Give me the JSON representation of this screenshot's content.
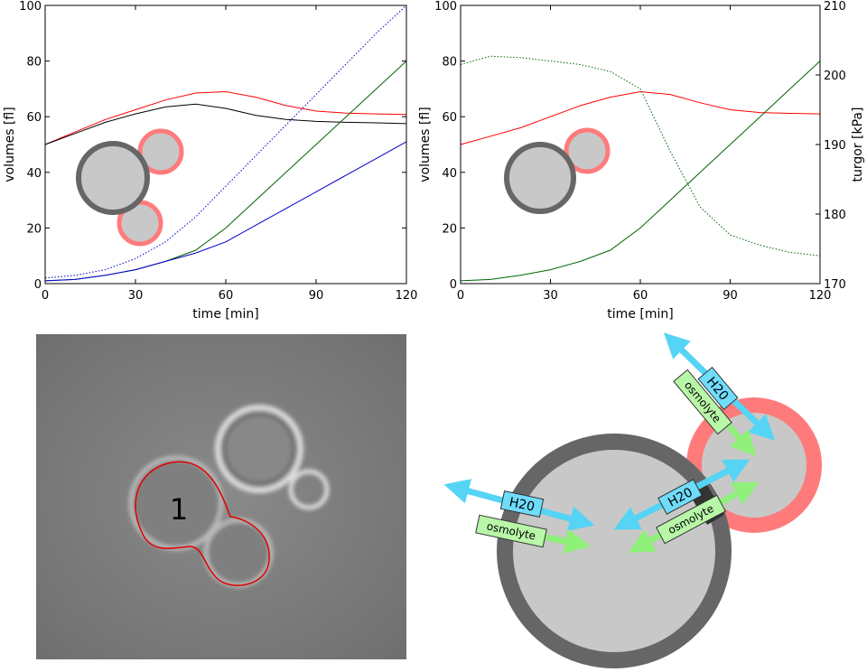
{
  "chart_data": [
    {
      "type": "line",
      "xlabel": "time [min]",
      "ylabel": "volumes [fl]",
      "x": [
        0,
        10,
        20,
        30,
        40,
        50,
        60,
        70,
        80,
        90,
        100,
        110,
        120
      ],
      "xlim": [
        0,
        120
      ],
      "xticks": [
        0,
        30,
        60,
        90,
        120
      ],
      "ylim": [
        0,
        100
      ],
      "yticks": [
        0,
        20,
        40,
        60,
        80,
        100
      ],
      "series": [
        {
          "color": "#ff0000",
          "style": "solid",
          "values": [
            50,
            54.5,
            59,
            62.5,
            66,
            68.5,
            69,
            67,
            64,
            62,
            61.3,
            61,
            60.8
          ]
        },
        {
          "color": "#000000",
          "style": "solid",
          "values": [
            50,
            54,
            58,
            61,
            63.5,
            64.5,
            63,
            60.5,
            59,
            58.3,
            58,
            57.8,
            57.5
          ]
        },
        {
          "color": "#0000cc",
          "style": "dotted",
          "values": [
            2,
            3,
            5,
            9,
            15,
            24,
            35,
            46,
            57,
            68,
            79,
            90,
            100
          ]
        },
        {
          "color": "#006400",
          "style": "solid",
          "values": [
            1,
            1.5,
            3,
            5,
            8,
            12,
            20,
            30,
            40,
            50,
            60,
            70,
            80
          ]
        },
        {
          "color": "#0000cc",
          "style": "solid",
          "values": [
            1,
            1.5,
            3,
            5,
            8,
            11,
            15,
            21,
            27,
            33,
            39,
            45,
            51
          ]
        }
      ]
    },
    {
      "type": "line",
      "xlabel": "time [min]",
      "ylabel": "volumes [fl]",
      "y2label": "turgor [kPa]",
      "x": [
        0,
        10,
        20,
        30,
        40,
        50,
        60,
        70,
        80,
        90,
        100,
        110,
        120
      ],
      "xlim": [
        0,
        120
      ],
      "xticks": [
        0,
        30,
        60,
        90,
        120
      ],
      "ylim": [
        0,
        100
      ],
      "yticks": [
        0,
        20,
        40,
        60,
        80,
        100
      ],
      "y2lim": [
        170,
        210
      ],
      "y2ticks": [
        170,
        180,
        190,
        200,
        210
      ],
      "series": [
        {
          "color": "#ff0000",
          "style": "solid",
          "values": [
            50,
            53,
            56,
            60,
            64,
            67,
            69,
            68,
            65,
            62.5,
            61.5,
            61.2,
            61
          ]
        },
        {
          "color": "#006400",
          "style": "solid",
          "values": [
            1,
            1.5,
            3,
            5,
            8,
            12,
            20,
            30,
            40,
            50,
            60,
            70,
            80
          ]
        },
        {
          "color": "#006400",
          "style": "dotted",
          "axis": "y2",
          "values": [
            201.5,
            202.7,
            202.5,
            202,
            201.5,
            200.5,
            198,
            189,
            181,
            177,
            175.5,
            174.5,
            174
          ]
        }
      ]
    }
  ],
  "micrograph": {
    "label": "1"
  },
  "diagram": {
    "labels": [
      "H20",
      "osmolyte",
      "H20",
      "osmolyte"
    ]
  }
}
